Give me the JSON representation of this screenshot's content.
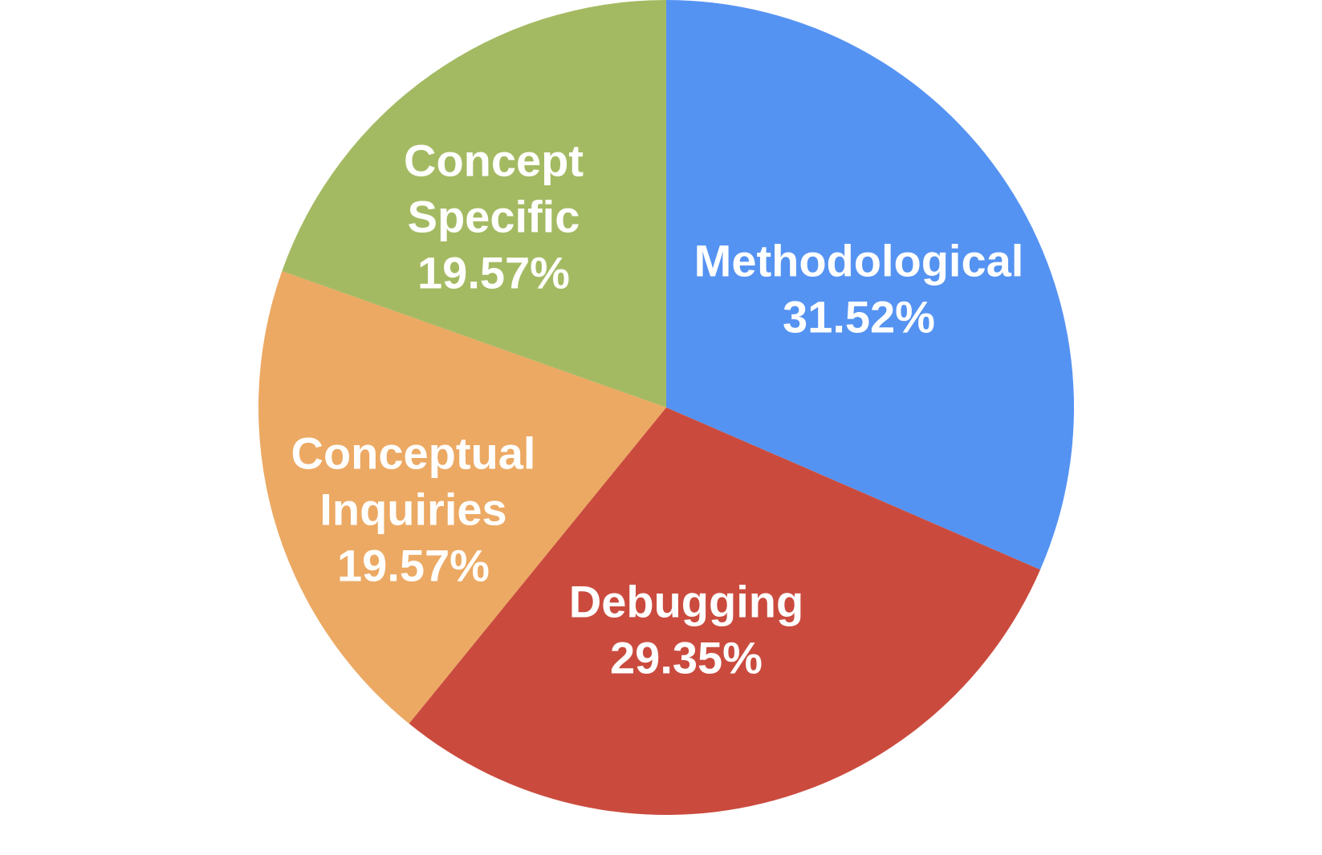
{
  "chart_data": {
    "type": "pie",
    "slices": [
      {
        "label_lines": [
          "Methodological"
        ],
        "value": 31.52,
        "value_label": "31.52%",
        "color": "#5593F2"
      },
      {
        "label_lines": [
          "Debugging"
        ],
        "value": 29.35,
        "value_label": "29.35%",
        "color": "#CA4B3E"
      },
      {
        "label_lines": [
          "Conceptual",
          "Inquiries"
        ],
        "value": 19.57,
        "value_label": "19.57%",
        "color": "#ECA963"
      },
      {
        "label_lines": [
          "Concept",
          "Specific"
        ],
        "value": 19.57,
        "value_label": "19.57%",
        "color": "#A4BA62"
      }
    ],
    "start_angle": "12 o'clock",
    "direction": "clockwise",
    "legend": "none",
    "labels_inside": true
  }
}
